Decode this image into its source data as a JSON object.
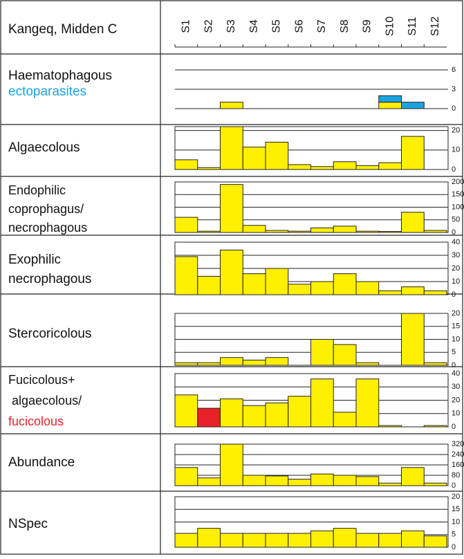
{
  "header": {
    "title": "Kangeq, Midden C"
  },
  "categories": [
    "S1",
    "S2",
    "S3",
    "S4",
    "S5",
    "S6",
    "S7",
    "S8",
    "S9",
    "S10",
    "S11",
    "S12"
  ],
  "chart_data": [
    {
      "type": "bar",
      "title_lines": [
        {
          "text": "Haematophagous",
          "color": "#111111"
        },
        {
          "text": "ectoparasites",
          "color": "#1aa3e0"
        }
      ],
      "series": [
        {
          "color": "#ffef00",
          "values": [
            0,
            0,
            1,
            0,
            0,
            0,
            0,
            0,
            0,
            1,
            0,
            0
          ]
        },
        {
          "color": "#1aa3e0",
          "values": [
            0,
            0,
            0,
            0,
            0,
            0,
            0,
            0,
            0,
            1,
            1,
            0
          ]
        }
      ],
      "ylim": [
        0,
        6
      ],
      "yticks": [
        0,
        3,
        6
      ],
      "frame": false
    },
    {
      "type": "bar",
      "title_lines": [
        {
          "text": "Algaecolous",
          "color": "#111111"
        }
      ],
      "series": [
        {
          "color": "#ffef00",
          "values": [
            5,
            1,
            22,
            11.5,
            14,
            2.5,
            1.5,
            4,
            2,
            3.5,
            17,
            0
          ]
        }
      ],
      "ylim": [
        0,
        22
      ],
      "yticks": [
        0,
        10,
        20
      ],
      "frame": true
    },
    {
      "type": "bar",
      "title_lines": [
        {
          "text": "Endophilic",
          "color": "#111111"
        },
        {
          "text": "coprophagus/",
          "color": "#111111"
        },
        {
          "text": "necrophagous",
          "color": "#111111"
        }
      ],
      "series": [
        {
          "color": "#ffef00",
          "values": [
            60,
            5,
            190,
            28,
            8,
            5,
            18,
            25,
            5,
            4,
            80,
            8
          ]
        }
      ],
      "ylim": [
        0,
        200
      ],
      "yticks": [
        0,
        50,
        100,
        150,
        200
      ],
      "frame": true
    },
    {
      "type": "bar",
      "title_lines": [
        {
          "text": "Exophilic",
          "color": "#111111"
        },
        {
          "text": "necrophagous",
          "color": "#111111"
        }
      ],
      "series": [
        {
          "color": "#ffef00",
          "values": [
            29,
            14,
            34,
            16,
            20,
            8,
            10,
            16,
            10,
            3,
            6,
            3
          ]
        }
      ],
      "ylim": [
        0,
        40
      ],
      "yticks": [
        0,
        10,
        20,
        30,
        40
      ],
      "frame": true
    },
    {
      "type": "bar",
      "title_lines": [
        {
          "text": "Stercoricolous",
          "color": "#111111"
        }
      ],
      "series": [
        {
          "color": "#ffef00",
          "values": [
            1,
            1,
            3,
            2,
            3,
            0,
            10,
            8,
            1,
            0,
            20,
            1
          ]
        }
      ],
      "ylim": [
        0,
        20
      ],
      "yticks": [
        0,
        5,
        10,
        15,
        20
      ],
      "frame": true
    },
    {
      "type": "bar",
      "title_lines": [
        {
          "text": "Fucicolous+",
          "color": "#111111"
        },
        {
          "text": " algaecolous/",
          "color": "#111111"
        },
        {
          "text": "fucicolous",
          "color": "#e8202a"
        }
      ],
      "series": [
        {
          "color": "#ffef00",
          "values": [
            24,
            0,
            21,
            16,
            18,
            23,
            36,
            11,
            36,
            1,
            0,
            1
          ]
        },
        {
          "color": "#e8202a",
          "values": [
            0,
            14,
            0,
            0,
            0,
            0,
            0,
            0,
            0,
            0,
            0,
            0
          ]
        }
      ],
      "ylim": [
        0,
        40
      ],
      "yticks": [
        0,
        10,
        20,
        30,
        40
      ],
      "frame": true
    },
    {
      "type": "bar",
      "title_lines": [
        {
          "text": "Abundance",
          "color": "#111111"
        }
      ],
      "series": [
        {
          "color": "#ffef00",
          "values": [
            140,
            60,
            320,
            80,
            75,
            50,
            90,
            80,
            70,
            20,
            140,
            20
          ]
        }
      ],
      "ylim": [
        0,
        320
      ],
      "yticks": [
        0,
        80,
        160,
        240,
        320
      ],
      "frame": true
    },
    {
      "type": "bar",
      "title_lines": [
        {
          "text": "NSpec",
          "color": "#111111"
        }
      ],
      "series": [
        {
          "color": "#ffef00",
          "values": [
            5.5,
            7.5,
            5.5,
            5.5,
            5.5,
            5.5,
            6.5,
            7.5,
            5.5,
            5.5,
            6.5,
            4.5
          ]
        }
      ],
      "ylim": [
        0,
        20
      ],
      "yticks": [
        0,
        5,
        10,
        15,
        20
      ],
      "frame": true
    }
  ]
}
